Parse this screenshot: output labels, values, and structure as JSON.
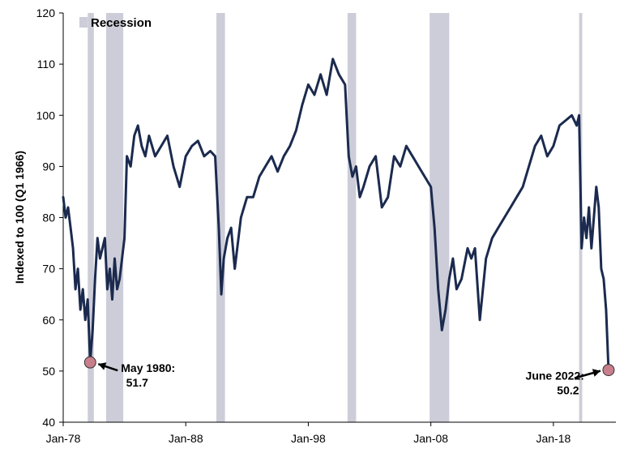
{
  "chart_data": {
    "type": "line",
    "title": "",
    "xlabel": "",
    "ylabel": "Indexed to 100 (Q1 1966)",
    "ylim": [
      40,
      120
    ],
    "yticks": [
      "40",
      "50",
      "60",
      "70",
      "80",
      "90",
      "100",
      "110",
      "120"
    ],
    "xlim": [
      1978.0,
      2023.1
    ],
    "xticks": [
      {
        "label": "Jan-78",
        "x": 1978.0
      },
      {
        "label": "Jan-88",
        "x": 1988.0
      },
      {
        "label": "Jan-98",
        "x": 1998.0
      },
      {
        "label": "Jan-08",
        "x": 2008.0
      },
      {
        "label": "Jan-18",
        "x": 2018.0
      }
    ],
    "grid": false,
    "legend": {
      "position": "top-left",
      "label": "Recession",
      "color": "#cccdd8"
    },
    "line_color": "#1b2a4e",
    "recessions": [
      {
        "start": 1980.0,
        "end": 1980.5
      },
      {
        "start": 1981.5,
        "end": 1982.9
      },
      {
        "start": 1990.5,
        "end": 1991.2
      },
      {
        "start": 2001.2,
        "end": 2001.9
      },
      {
        "start": 2007.9,
        "end": 2009.5
      },
      {
        "start": 2020.1,
        "end": 2020.35
      }
    ],
    "series": [
      {
        "x": [
          1978.0,
          1978.2,
          1978.4,
          1978.6,
          1978.8,
          1979.0,
          1979.2,
          1979.4,
          1979.6,
          1979.8,
          1980.0,
          1980.2,
          1980.4,
          1980.6,
          1980.8,
          1981.0,
          1981.2,
          1981.4,
          1981.6,
          1981.8,
          1982.0,
          1982.2,
          1982.4,
          1982.6,
          1982.8,
          1983.0,
          1983.2,
          1983.5,
          1983.8,
          1984.1,
          1984.4,
          1984.7,
          1985.0,
          1985.5,
          1986.0,
          1986.5,
          1987.0,
          1987.5,
          1988.0,
          1988.5,
          1989.0,
          1989.5,
          1990.0,
          1990.4,
          1990.7,
          1990.9,
          1991.1,
          1991.4,
          1991.7,
          1992.0,
          1992.5,
          1993.0,
          1993.5,
          1994.0,
          1994.5,
          1995.0,
          1995.5,
          1996.0,
          1996.5,
          1997.0,
          1997.5,
          1998.0,
          1998.5,
          1999.0,
          1999.5,
          2000.0,
          2000.5,
          2001.0,
          2001.3,
          2001.6,
          2001.9,
          2002.2,
          2002.5,
          2003.0,
          2003.5,
          2004.0,
          2004.5,
          2005.0,
          2005.5,
          2006.0,
          2006.5,
          2007.0,
          2007.5,
          2008.0,
          2008.3,
          2008.6,
          2008.9,
          2009.2,
          2009.5,
          2009.8,
          2010.1,
          2010.5,
          2011.0,
          2011.3,
          2011.6,
          2012.0,
          2012.5,
          2013.0,
          2013.5,
          2014.0,
          2014.5,
          2015.0,
          2015.5,
          2016.0,
          2016.5,
          2017.0,
          2017.5,
          2018.0,
          2018.5,
          2019.0,
          2019.5,
          2019.9,
          2020.1,
          2020.3,
          2020.5,
          2020.7,
          2020.9,
          2021.1,
          2021.3,
          2021.5,
          2021.7,
          2021.9,
          2022.1,
          2022.3,
          2022.5
        ],
        "values": [
          84,
          80,
          82,
          78,
          74,
          66,
          70,
          62,
          66,
          60,
          64,
          51.7,
          58,
          68,
          76,
          72,
          74,
          76,
          66,
          70,
          64,
          72,
          66,
          68,
          72,
          76,
          92,
          90,
          96,
          98,
          94,
          92,
          96,
          92,
          94,
          96,
          90,
          86,
          92,
          94,
          95,
          92,
          93,
          92,
          78,
          65,
          72,
          76,
          78,
          70,
          80,
          84,
          84,
          88,
          90,
          92,
          89,
          92,
          94,
          97,
          102,
          106,
          104,
          108,
          104,
          111,
          108,
          106,
          92,
          88,
          90,
          84,
          86,
          90,
          92,
          82,
          84,
          92,
          90,
          94,
          92,
          90,
          88,
          86,
          78,
          66,
          58,
          62,
          68,
          72,
          66,
          68,
          74,
          72,
          74,
          60,
          72,
          76,
          78,
          80,
          82,
          84,
          86,
          90,
          94,
          96,
          92,
          94,
          98,
          99,
          100,
          98,
          100,
          74,
          80,
          76,
          82,
          74,
          80,
          86,
          82,
          70,
          68,
          62,
          50.2
        ]
      }
    ],
    "annotations": [
      {
        "point": {
          "x": 1980.2,
          "y": 51.7
        },
        "lines": [
          "May 1980:",
          "51.7"
        ],
        "color": "#c87f8b"
      },
      {
        "point": {
          "x": 2022.5,
          "y": 50.2
        },
        "lines": [
          "June 2022:",
          "50.2"
        ],
        "color": "#c87f8b"
      }
    ]
  }
}
